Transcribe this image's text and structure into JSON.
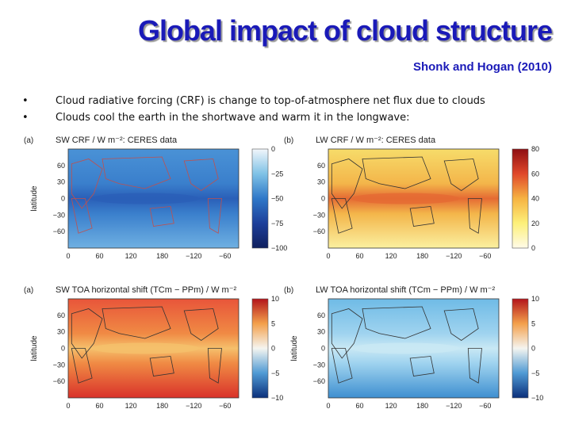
{
  "title": "Global impact of cloud structure",
  "citation": "Shonk and Hogan (2010)",
  "bullets": [
    "Cloud radiative forcing (CRF) is change to top-of-atmosphere net flux due to clouds",
    "Clouds cool the earth in the shortwave and warm it in the longwave:"
  ],
  "chart_data": [
    {
      "type": "heatmap",
      "label": "(a)",
      "title": "SW CRF / W m⁻²: CERES data",
      "ylabel": "latitude",
      "xticks": [
        "0",
        "60",
        "120",
        "180",
        "−120",
        "−60"
      ],
      "yticks": [
        "60",
        "30",
        "0",
        "−30",
        "−60"
      ],
      "colorbar_ticks": [
        "0",
        "−25",
        "−50",
        "−75",
        "−100"
      ],
      "colorscale": "blues"
    },
    {
      "type": "heatmap",
      "label": "(b)",
      "title": "LW CRF / W m⁻²: CERES data",
      "ylabel": "",
      "xticks": [
        "0",
        "60",
        "120",
        "180",
        "−120",
        "−60"
      ],
      "yticks": [
        "60",
        "30",
        "0",
        "−30",
        "−60"
      ],
      "colorbar_ticks": [
        "80",
        "60",
        "40",
        "20",
        "0"
      ],
      "colorscale": "yellow-red"
    },
    {
      "type": "heatmap",
      "label": "(a)",
      "title": "SW TOA horizontal shift (TCm − PPm) / W m⁻²",
      "ylabel": "latitude",
      "xticks": [
        "0",
        "60",
        "120",
        "180",
        "−120",
        "−60"
      ],
      "yticks": [
        "60",
        "30",
        "0",
        "−30",
        "−60"
      ],
      "colorbar_ticks": [
        "10",
        "5",
        "0",
        "−5",
        "−10"
      ],
      "colorscale": "diverging-red"
    },
    {
      "type": "heatmap",
      "label": "(b)",
      "title": "LW TOA horizontal shift (TCm − PPm) / W m⁻²",
      "ylabel": "latitude",
      "xticks": [
        "0",
        "60",
        "120",
        "180",
        "−120",
        "−60"
      ],
      "yticks": [
        "60",
        "30",
        "0",
        "−30",
        "−60"
      ],
      "colorbar_ticks": [
        "10",
        "5",
        "0",
        "−5",
        "−10"
      ],
      "colorscale": "diverging-blue"
    }
  ]
}
